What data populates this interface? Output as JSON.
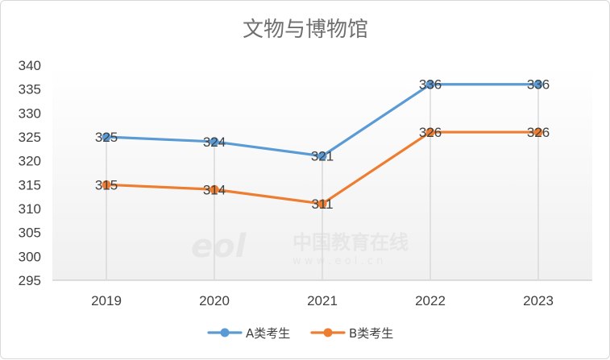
{
  "chart_data": {
    "type": "line",
    "title": "文物与博物馆",
    "categories": [
      "2019",
      "2020",
      "2021",
      "2022",
      "2023"
    ],
    "series": [
      {
        "name": "A类考生",
        "values": [
          325,
          324,
          321,
          336,
          336
        ],
        "color": "#5b9bd5"
      },
      {
        "name": "B类考生",
        "values": [
          315,
          314,
          311,
          326,
          326
        ],
        "color": "#ed7d31"
      }
    ],
    "ylim": [
      295,
      340
    ],
    "yticks": [
      295,
      300,
      305,
      310,
      315,
      320,
      325,
      330,
      335,
      340
    ],
    "grid": false,
    "drop_lines": true,
    "data_labels": true,
    "legend_position": "bottom"
  },
  "watermark": {
    "logo": "eol",
    "text": "中国教育在线",
    "url": "w w w . e o l . c n"
  }
}
